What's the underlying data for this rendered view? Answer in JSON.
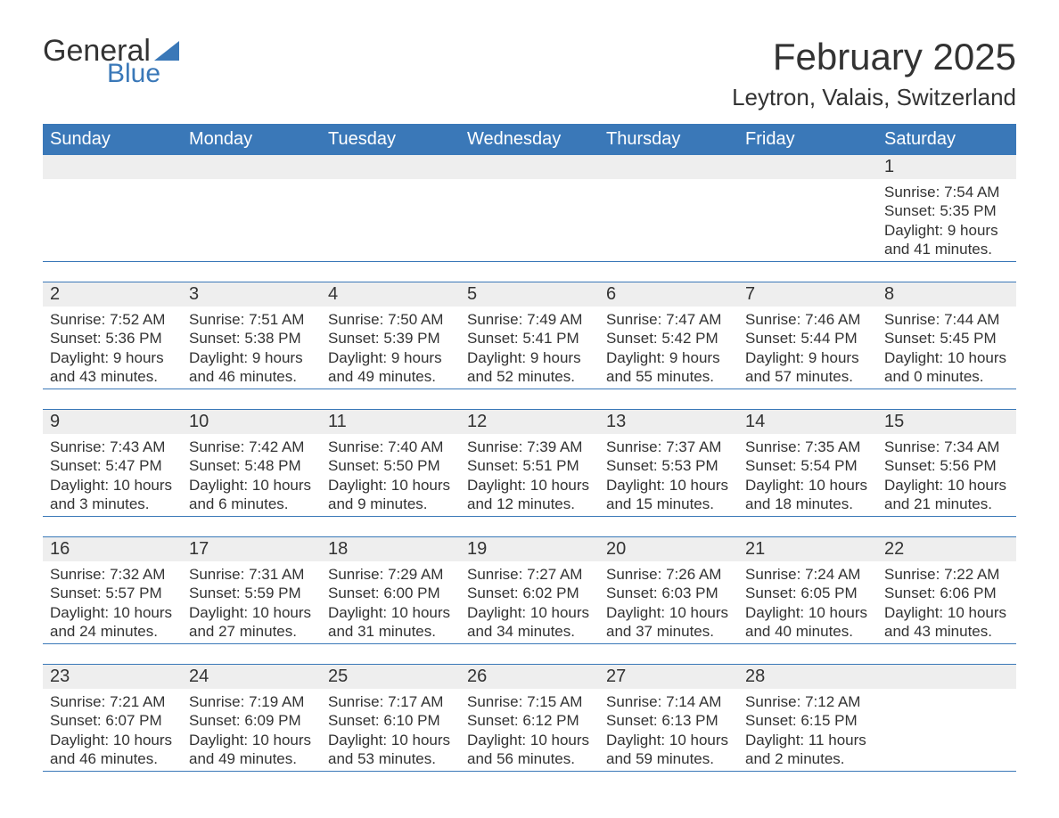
{
  "logo": {
    "word1": "General",
    "word2": "Blue",
    "shape_color": "#3a78b8",
    "text_color": "#333333"
  },
  "title": "February 2025",
  "location": "Leytron, Valais, Switzerland",
  "colors": {
    "header_bg": "#3a78b8",
    "header_text": "#ffffff",
    "daynum_bg": "#eeeeee",
    "body_text": "#333333",
    "rule": "#3a78b8",
    "page_bg": "#ffffff"
  },
  "fonts": {
    "title_size_pt": 32,
    "location_size_pt": 20,
    "header_size_pt": 15,
    "body_size_pt": 13
  },
  "day_headers": [
    "Sunday",
    "Monday",
    "Tuesday",
    "Wednesday",
    "Thursday",
    "Friday",
    "Saturday"
  ],
  "weeks": [
    [
      null,
      null,
      null,
      null,
      null,
      null,
      {
        "n": "1",
        "sunrise": "Sunrise: 7:54 AM",
        "sunset": "Sunset: 5:35 PM",
        "daylight1": "Daylight: 9 hours",
        "daylight2": "and 41 minutes."
      }
    ],
    [
      {
        "n": "2",
        "sunrise": "Sunrise: 7:52 AM",
        "sunset": "Sunset: 5:36 PM",
        "daylight1": "Daylight: 9 hours",
        "daylight2": "and 43 minutes."
      },
      {
        "n": "3",
        "sunrise": "Sunrise: 7:51 AM",
        "sunset": "Sunset: 5:38 PM",
        "daylight1": "Daylight: 9 hours",
        "daylight2": "and 46 minutes."
      },
      {
        "n": "4",
        "sunrise": "Sunrise: 7:50 AM",
        "sunset": "Sunset: 5:39 PM",
        "daylight1": "Daylight: 9 hours",
        "daylight2": "and 49 minutes."
      },
      {
        "n": "5",
        "sunrise": "Sunrise: 7:49 AM",
        "sunset": "Sunset: 5:41 PM",
        "daylight1": "Daylight: 9 hours",
        "daylight2": "and 52 minutes."
      },
      {
        "n": "6",
        "sunrise": "Sunrise: 7:47 AM",
        "sunset": "Sunset: 5:42 PM",
        "daylight1": "Daylight: 9 hours",
        "daylight2": "and 55 minutes."
      },
      {
        "n": "7",
        "sunrise": "Sunrise: 7:46 AM",
        "sunset": "Sunset: 5:44 PM",
        "daylight1": "Daylight: 9 hours",
        "daylight2": "and 57 minutes."
      },
      {
        "n": "8",
        "sunrise": "Sunrise: 7:44 AM",
        "sunset": "Sunset: 5:45 PM",
        "daylight1": "Daylight: 10 hours",
        "daylight2": "and 0 minutes."
      }
    ],
    [
      {
        "n": "9",
        "sunrise": "Sunrise: 7:43 AM",
        "sunset": "Sunset: 5:47 PM",
        "daylight1": "Daylight: 10 hours",
        "daylight2": "and 3 minutes."
      },
      {
        "n": "10",
        "sunrise": "Sunrise: 7:42 AM",
        "sunset": "Sunset: 5:48 PM",
        "daylight1": "Daylight: 10 hours",
        "daylight2": "and 6 minutes."
      },
      {
        "n": "11",
        "sunrise": "Sunrise: 7:40 AM",
        "sunset": "Sunset: 5:50 PM",
        "daylight1": "Daylight: 10 hours",
        "daylight2": "and 9 minutes."
      },
      {
        "n": "12",
        "sunrise": "Sunrise: 7:39 AM",
        "sunset": "Sunset: 5:51 PM",
        "daylight1": "Daylight: 10 hours",
        "daylight2": "and 12 minutes."
      },
      {
        "n": "13",
        "sunrise": "Sunrise: 7:37 AM",
        "sunset": "Sunset: 5:53 PM",
        "daylight1": "Daylight: 10 hours",
        "daylight2": "and 15 minutes."
      },
      {
        "n": "14",
        "sunrise": "Sunrise: 7:35 AM",
        "sunset": "Sunset: 5:54 PM",
        "daylight1": "Daylight: 10 hours",
        "daylight2": "and 18 minutes."
      },
      {
        "n": "15",
        "sunrise": "Sunrise: 7:34 AM",
        "sunset": "Sunset: 5:56 PM",
        "daylight1": "Daylight: 10 hours",
        "daylight2": "and 21 minutes."
      }
    ],
    [
      {
        "n": "16",
        "sunrise": "Sunrise: 7:32 AM",
        "sunset": "Sunset: 5:57 PM",
        "daylight1": "Daylight: 10 hours",
        "daylight2": "and 24 minutes."
      },
      {
        "n": "17",
        "sunrise": "Sunrise: 7:31 AM",
        "sunset": "Sunset: 5:59 PM",
        "daylight1": "Daylight: 10 hours",
        "daylight2": "and 27 minutes."
      },
      {
        "n": "18",
        "sunrise": "Sunrise: 7:29 AM",
        "sunset": "Sunset: 6:00 PM",
        "daylight1": "Daylight: 10 hours",
        "daylight2": "and 31 minutes."
      },
      {
        "n": "19",
        "sunrise": "Sunrise: 7:27 AM",
        "sunset": "Sunset: 6:02 PM",
        "daylight1": "Daylight: 10 hours",
        "daylight2": "and 34 minutes."
      },
      {
        "n": "20",
        "sunrise": "Sunrise: 7:26 AM",
        "sunset": "Sunset: 6:03 PM",
        "daylight1": "Daylight: 10 hours",
        "daylight2": "and 37 minutes."
      },
      {
        "n": "21",
        "sunrise": "Sunrise: 7:24 AM",
        "sunset": "Sunset: 6:05 PM",
        "daylight1": "Daylight: 10 hours",
        "daylight2": "and 40 minutes."
      },
      {
        "n": "22",
        "sunrise": "Sunrise: 7:22 AM",
        "sunset": "Sunset: 6:06 PM",
        "daylight1": "Daylight: 10 hours",
        "daylight2": "and 43 minutes."
      }
    ],
    [
      {
        "n": "23",
        "sunrise": "Sunrise: 7:21 AM",
        "sunset": "Sunset: 6:07 PM",
        "daylight1": "Daylight: 10 hours",
        "daylight2": "and 46 minutes."
      },
      {
        "n": "24",
        "sunrise": "Sunrise: 7:19 AM",
        "sunset": "Sunset: 6:09 PM",
        "daylight1": "Daylight: 10 hours",
        "daylight2": "and 49 minutes."
      },
      {
        "n": "25",
        "sunrise": "Sunrise: 7:17 AM",
        "sunset": "Sunset: 6:10 PM",
        "daylight1": "Daylight: 10 hours",
        "daylight2": "and 53 minutes."
      },
      {
        "n": "26",
        "sunrise": "Sunrise: 7:15 AM",
        "sunset": "Sunset: 6:12 PM",
        "daylight1": "Daylight: 10 hours",
        "daylight2": "and 56 minutes."
      },
      {
        "n": "27",
        "sunrise": "Sunrise: 7:14 AM",
        "sunset": "Sunset: 6:13 PM",
        "daylight1": "Daylight: 10 hours",
        "daylight2": "and 59 minutes."
      },
      {
        "n": "28",
        "sunrise": "Sunrise: 7:12 AM",
        "sunset": "Sunset: 6:15 PM",
        "daylight1": "Daylight: 11 hours",
        "daylight2": "and 2 minutes."
      },
      null
    ]
  ]
}
